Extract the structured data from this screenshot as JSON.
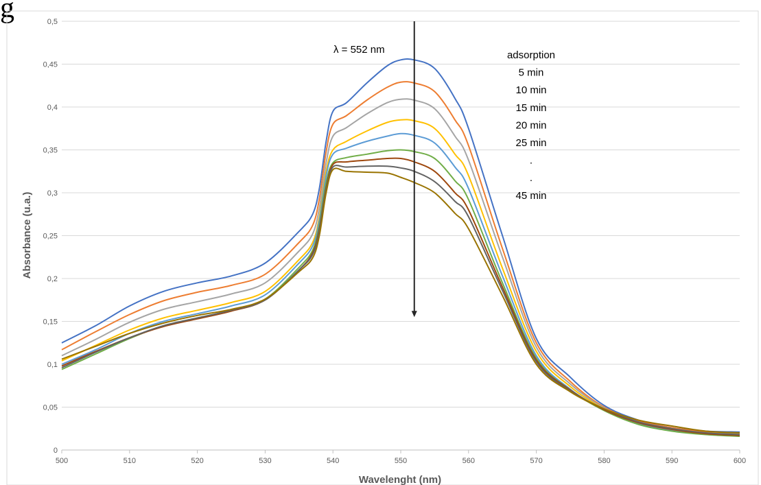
{
  "figure_label": "g",
  "chart_data": {
    "type": "line",
    "title": "",
    "xlabel": "Wavelenght (nm)",
    "ylabel": "Absorbance (u.a.)",
    "xlim": [
      500,
      600
    ],
    "ylim": [
      0,
      0.5
    ],
    "x_ticks": [
      500,
      510,
      520,
      530,
      540,
      550,
      560,
      570,
      580,
      590,
      600
    ],
    "x_tick_labels": [
      "500",
      "510",
      "520",
      "530",
      "540",
      "550",
      "560",
      "570",
      "580",
      "590",
      "600"
    ],
    "y_ticks": [
      0,
      0.05,
      0.1,
      0.15,
      0.2,
      0.25,
      0.3,
      0.35,
      0.4,
      0.45,
      0.5
    ],
    "y_tick_labels": [
      "0",
      "0,05",
      "0,1",
      "0,15",
      "0,2",
      "0,25",
      "0,3",
      "0,35",
      "0,4",
      "0,45",
      "0,5"
    ],
    "grid": "horizontal",
    "legend": "none",
    "x": [
      500,
      505,
      510,
      515,
      520,
      525,
      530,
      535,
      537,
      538,
      539,
      540,
      542,
      545,
      548,
      550,
      552,
      555,
      558,
      560,
      565,
      570,
      575,
      580,
      585,
      590,
      595,
      600
    ],
    "series": [
      {
        "color": "#4472C4",
        "values": [
          0.125,
          0.145,
          0.168,
          0.185,
          0.195,
          0.203,
          0.218,
          0.255,
          0.275,
          0.305,
          0.36,
          0.395,
          0.405,
          0.428,
          0.448,
          0.455,
          0.455,
          0.445,
          0.41,
          0.375,
          0.25,
          0.13,
          0.085,
          0.052,
          0.035,
          0.026,
          0.022,
          0.021
        ]
      },
      {
        "color": "#ED7D31",
        "values": [
          0.117,
          0.138,
          0.158,
          0.174,
          0.184,
          0.192,
          0.205,
          0.242,
          0.262,
          0.293,
          0.348,
          0.38,
          0.39,
          0.408,
          0.423,
          0.429,
          0.428,
          0.418,
          0.385,
          0.355,
          0.235,
          0.125,
          0.08,
          0.05,
          0.034,
          0.026,
          0.021,
          0.02
        ]
      },
      {
        "color": "#A5A5A5",
        "values": [
          0.11,
          0.129,
          0.149,
          0.164,
          0.173,
          0.182,
          0.195,
          0.232,
          0.252,
          0.282,
          0.335,
          0.366,
          0.376,
          0.392,
          0.405,
          0.409,
          0.408,
          0.398,
          0.366,
          0.338,
          0.225,
          0.12,
          0.077,
          0.049,
          0.033,
          0.025,
          0.02,
          0.019
        ]
      },
      {
        "color": "#FFC000",
        "values": [
          0.104,
          0.122,
          0.14,
          0.154,
          0.163,
          0.172,
          0.185,
          0.222,
          0.242,
          0.272,
          0.325,
          0.35,
          0.36,
          0.372,
          0.382,
          0.385,
          0.384,
          0.375,
          0.345,
          0.32,
          0.212,
          0.115,
          0.074,
          0.048,
          0.032,
          0.024,
          0.02,
          0.018
        ]
      },
      {
        "color": "#5B9BD5",
        "values": [
          0.1,
          0.117,
          0.136,
          0.15,
          0.159,
          0.168,
          0.181,
          0.218,
          0.238,
          0.268,
          0.32,
          0.345,
          0.352,
          0.36,
          0.366,
          0.369,
          0.367,
          0.358,
          0.33,
          0.305,
          0.203,
          0.11,
          0.071,
          0.047,
          0.031,
          0.023,
          0.019,
          0.017
        ]
      },
      {
        "color": "#70AD47",
        "values": [
          0.094,
          0.112,
          0.13,
          0.145,
          0.154,
          0.163,
          0.176,
          0.213,
          0.233,
          0.262,
          0.312,
          0.335,
          0.341,
          0.345,
          0.349,
          0.35,
          0.348,
          0.34,
          0.314,
          0.292,
          0.195,
          0.107,
          0.07,
          0.046,
          0.03,
          0.022,
          0.018,
          0.016
        ]
      },
      {
        "color": "#9E480E",
        "values": [
          0.098,
          0.115,
          0.131,
          0.144,
          0.153,
          0.162,
          0.175,
          0.21,
          0.23,
          0.258,
          0.306,
          0.333,
          0.336,
          0.338,
          0.34,
          0.34,
          0.336,
          0.325,
          0.3,
          0.28,
          0.19,
          0.105,
          0.07,
          0.047,
          0.032,
          0.024,
          0.019,
          0.017
        ]
      },
      {
        "color": "#636363",
        "values": [
          0.096,
          0.114,
          0.131,
          0.145,
          0.154,
          0.163,
          0.175,
          0.21,
          0.228,
          0.256,
          0.304,
          0.33,
          0.33,
          0.331,
          0.331,
          0.329,
          0.325,
          0.313,
          0.29,
          0.272,
          0.186,
          0.103,
          0.069,
          0.048,
          0.033,
          0.025,
          0.02,
          0.018
        ]
      },
      {
        "color": "#997300",
        "values": [
          0.106,
          0.121,
          0.136,
          0.148,
          0.157,
          0.164,
          0.176,
          0.208,
          0.224,
          0.25,
          0.3,
          0.327,
          0.325,
          0.324,
          0.323,
          0.318,
          0.312,
          0.3,
          0.276,
          0.258,
          0.18,
          0.1,
          0.068,
          0.048,
          0.035,
          0.028,
          0.022,
          0.02
        ]
      }
    ],
    "arrow": {
      "x": 552,
      "y_start": 0.5,
      "y_end": 0.155
    },
    "annotations": {
      "lambda_label": "λ =  552 nm",
      "legend_lines": [
        "adsorption",
        "5 min",
        "10 min",
        "15 min",
        "20 min",
        "25 min",
        ".",
        ".",
        "45 min"
      ]
    }
  }
}
